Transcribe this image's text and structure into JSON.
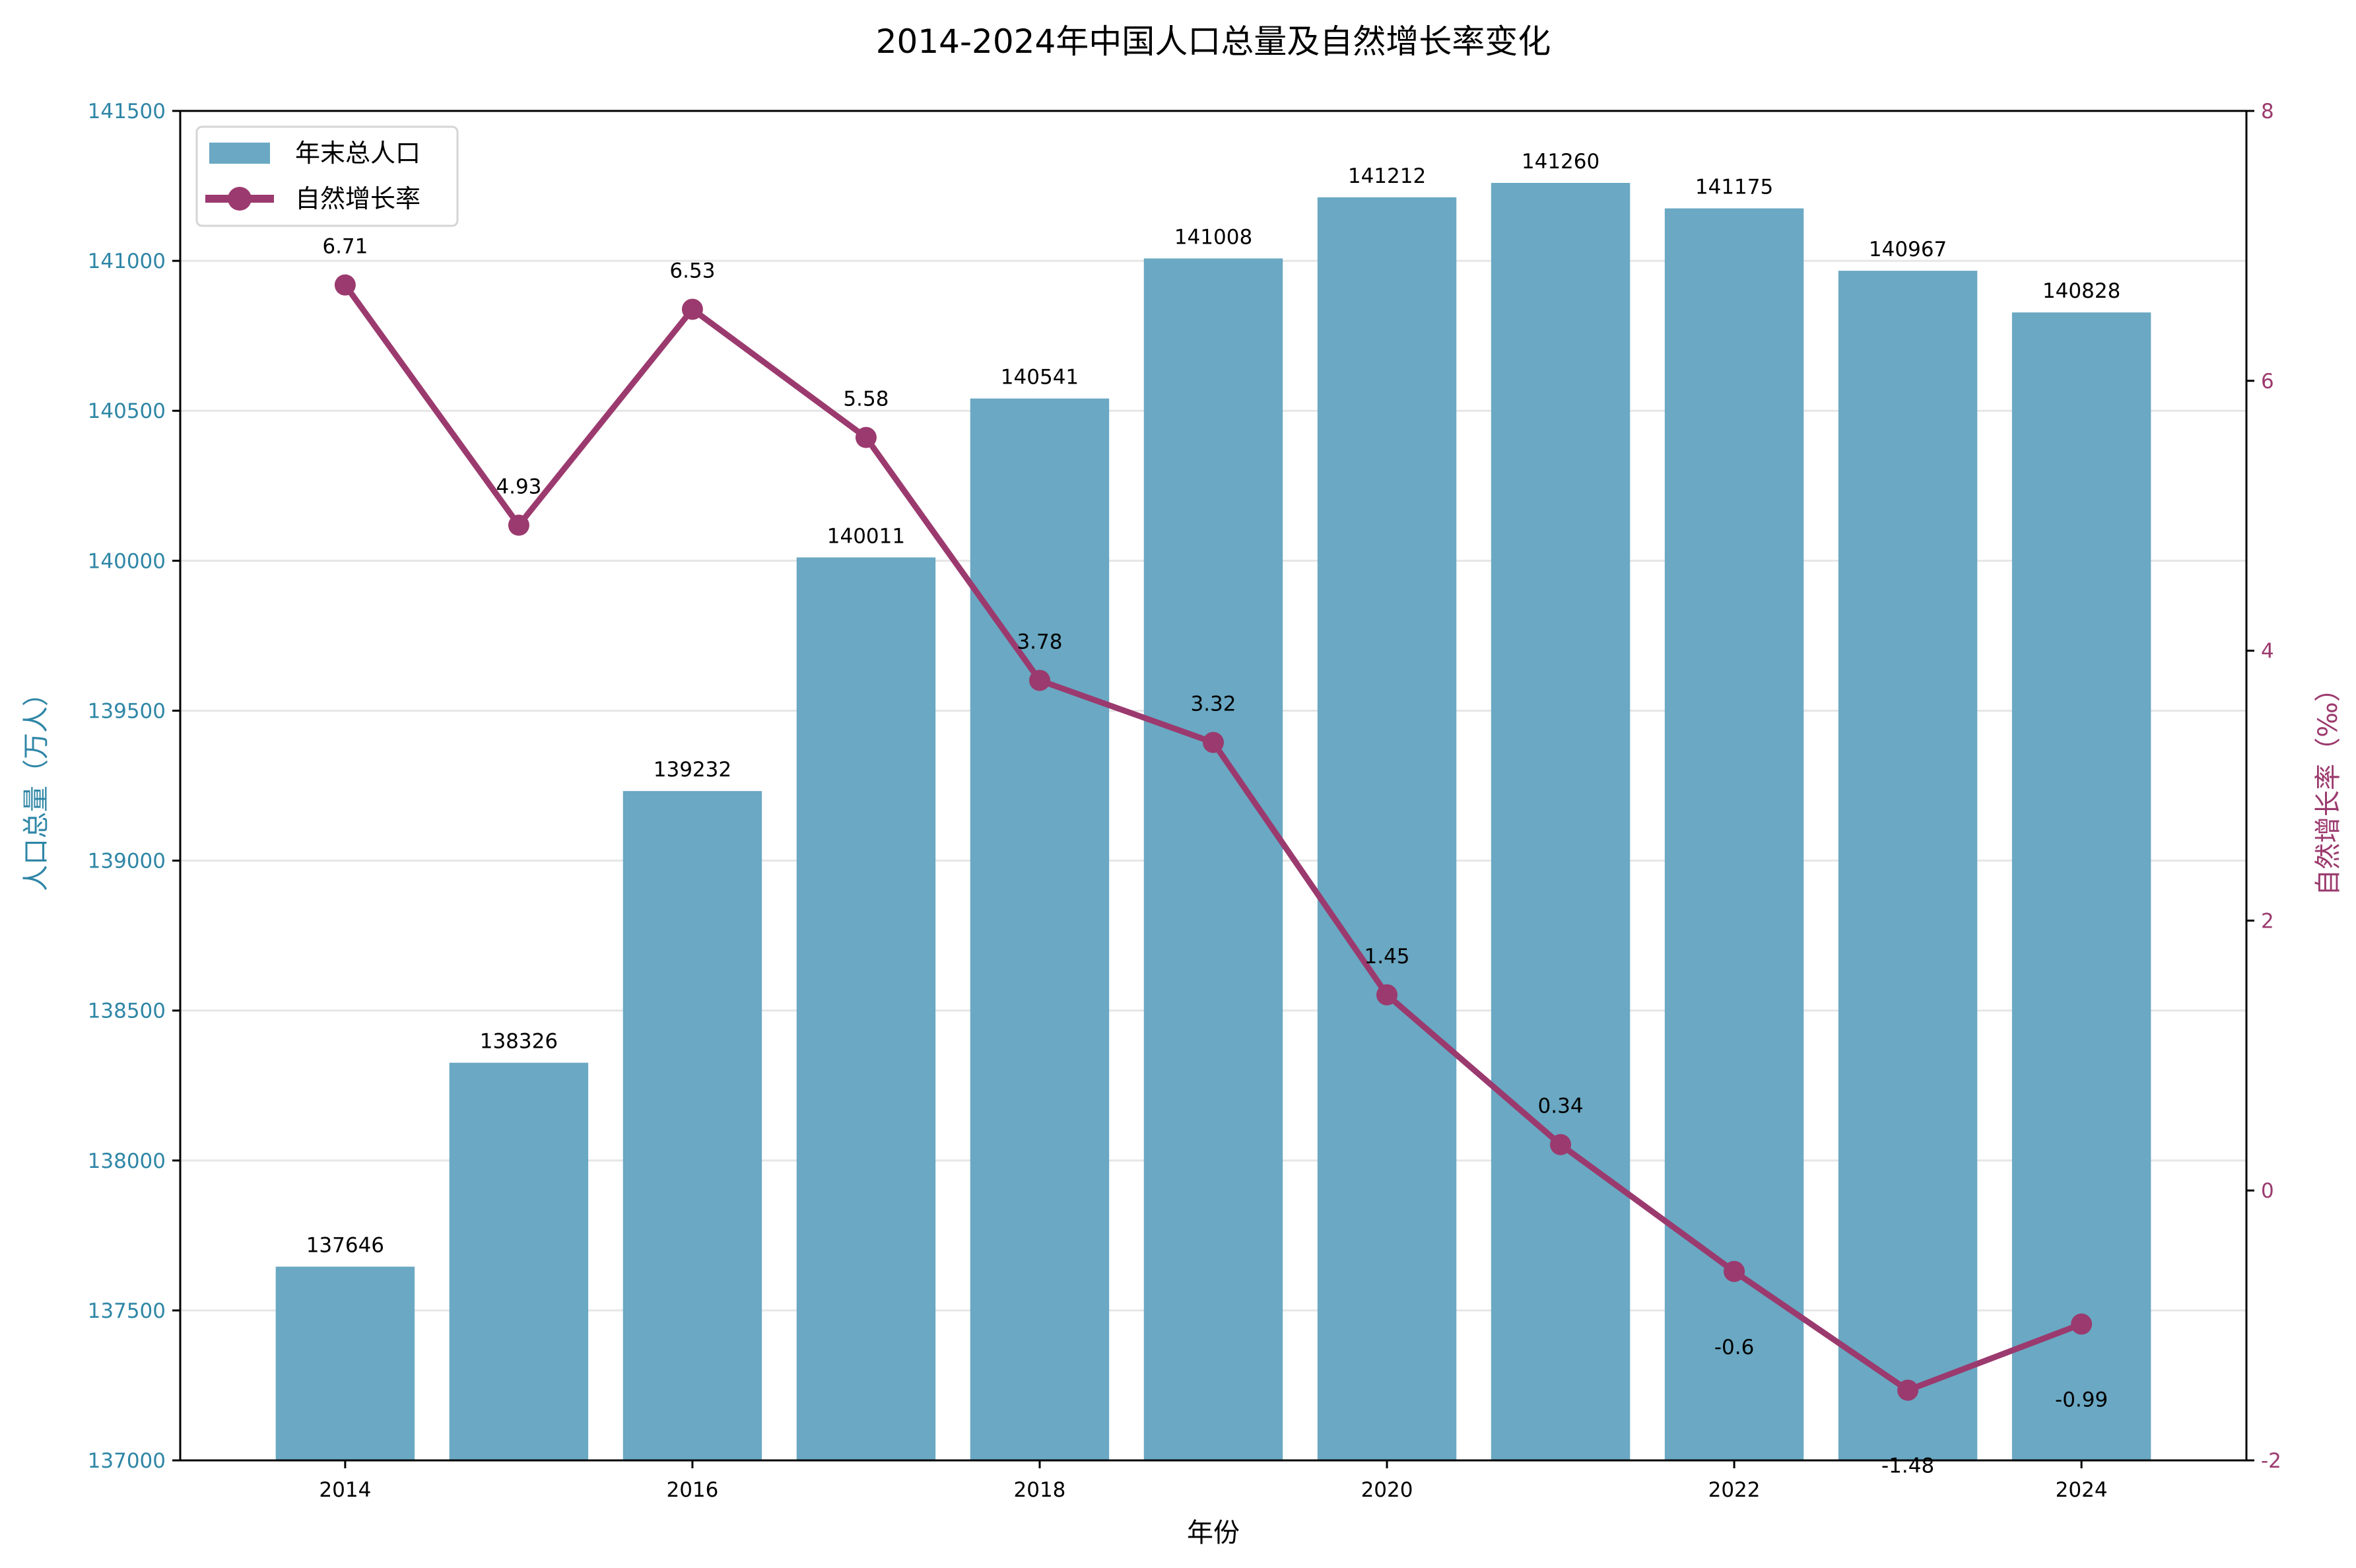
{
  "chart_data": {
    "type": "bar+line",
    "title": "2014-2024年中国人口总量及自然增长率变化",
    "xlabel": "年份",
    "ylabel_left": "人口总量（万人）",
    "ylabel_right": "自然增长率（‰）",
    "x": [
      2014,
      2015,
      2016,
      2017,
      2018,
      2019,
      2020,
      2021,
      2022,
      2023,
      2024
    ],
    "x_ticks": [
      "2014",
      "2016",
      "2018",
      "2020",
      "2022",
      "2024"
    ],
    "xlim": [
      2013.05,
      2024.95
    ],
    "ylim_left": [
      137000,
      141500
    ],
    "y_ticks_left": [
      "137000",
      "137500",
      "138000",
      "138500",
      "139000",
      "139500",
      "140000",
      "140500",
      "141000",
      "141500"
    ],
    "ylim_right": [
      -2,
      8
    ],
    "y_ticks_right": [
      "-2",
      "0",
      "2",
      "4",
      "6",
      "8"
    ],
    "grid": "horizontal (left axis)",
    "legend": {
      "placement": "top-left",
      "entries": [
        "年末总人口",
        "自然增长率"
      ]
    },
    "series": [
      {
        "name": "年末总人口",
        "type": "bar",
        "axis": "left",
        "color": "#6aa8c3",
        "values": [
          137646,
          138326,
          139232,
          140011,
          140541,
          141008,
          141212,
          141260,
          141175,
          140967,
          140828
        ],
        "labels": [
          "137646",
          "138326",
          "139232",
          "140011",
          "140541",
          "141008",
          "141212",
          "141260",
          "141175",
          "140967",
          "140828"
        ]
      },
      {
        "name": "自然增长率",
        "type": "line",
        "axis": "right",
        "color": "#9b3a6e",
        "values": [
          6.71,
          4.93,
          6.53,
          5.58,
          3.78,
          3.32,
          1.45,
          0.34,
          -0.6,
          -1.48,
          -0.99
        ],
        "labels": [
          "6.71",
          "4.93",
          "6.53",
          "5.58",
          "3.78",
          "3.32",
          "1.45",
          "0.34",
          "-0.6",
          "-1.48",
          "-0.99"
        ]
      }
    ],
    "colors": {
      "left_axis": "#2f86a6",
      "right_axis": "#9b3a6e",
      "grid": "#e6e6e6"
    }
  }
}
